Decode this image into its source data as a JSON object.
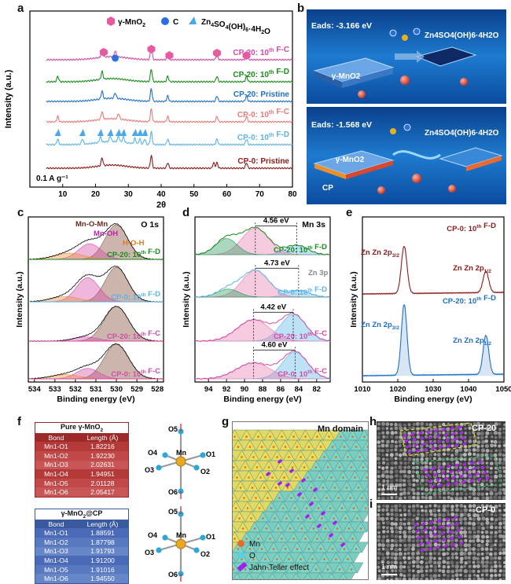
{
  "panel_labels": [
    "a",
    "b",
    "c",
    "d",
    "e",
    "f",
    "g",
    "h",
    "i"
  ],
  "chart_data": [
    {
      "panel": "a",
      "type": "line",
      "xlabel": "2θ",
      "ylabel": "Intensity (a.u.)",
      "xlim": [
        0,
        80
      ],
      "xticks": [
        10,
        20,
        30,
        40,
        50,
        60,
        70,
        80
      ],
      "legend": [
        {
          "symbol": "pink-hexagon",
          "label": "γ-MnO2"
        },
        {
          "symbol": "blue-sphere",
          "label": "C"
        },
        {
          "symbol": "blue-flake",
          "label": "Zn4SO4(OH)6·4H2O"
        }
      ],
      "annotation": "0.1 A g⁻¹",
      "series": [
        {
          "name": "CP-0: Pristine",
          "color": "#8b1a1a",
          "peaks": [
            22,
            37,
            42,
            56,
            57,
            66
          ]
        },
        {
          "name": "CP-0: 10th F-D",
          "color": "#5ab4e6",
          "peaks": [
            8.5,
            16,
            21.5,
            24.5,
            27,
            28.5,
            32,
            33.5,
            35,
            37,
            42,
            57,
            66
          ]
        },
        {
          "name": "CP-0: 10th F-C",
          "color": "#e87a7a",
          "peaks": [
            8.5,
            22,
            27,
            37,
            42,
            57,
            66
          ]
        },
        {
          "name": "CP-20: Pristine",
          "color": "#1f6fc5",
          "peaks": [
            22,
            26,
            37,
            42,
            57,
            66
          ]
        },
        {
          "name": "CP-20: 10th F-D",
          "color": "#1a8a1a",
          "peaks": [
            8.5,
            22,
            37,
            42,
            57,
            66
          ]
        },
        {
          "name": "CP-20: 10th F-C",
          "color": "#d44aa6",
          "peaks": [
            22,
            26,
            37,
            42,
            57,
            66
          ]
        }
      ]
    },
    {
      "panel": "c",
      "type": "line",
      "title": "O 1s",
      "xlabel": "Binding energy (eV)",
      "ylabel": "Intensity (a.u.)",
      "xlim": [
        534.3,
        527.7
      ],
      "xticks": [
        528,
        529,
        530,
        531,
        532,
        533,
        534
      ],
      "component_labels": [
        "Mn-O-Mn",
        "Mn-OH",
        "H-O-H"
      ],
      "series": [
        {
          "name": "CP-20: 10th F-D",
          "color": "#1a8a1a",
          "peaks": [
            {
              "center": 530.0,
              "height": 1.0,
              "width": 0.55
            },
            {
              "center": 531.3,
              "height": 0.45,
              "width": 0.55
            },
            {
              "center": 532.3,
              "height": 0.18,
              "width": 0.7
            }
          ]
        },
        {
          "name": "CP-0: 10th F-D",
          "color": "#5ab4e6",
          "peaks": [
            {
              "center": 530.0,
              "height": 1.0,
              "width": 0.55
            },
            {
              "center": 531.4,
              "height": 0.7,
              "width": 0.55
            },
            {
              "center": 532.5,
              "height": 0.15,
              "width": 0.7
            }
          ]
        },
        {
          "name": "CP-20: 10th F-C",
          "color": "#d44aa6",
          "peaks": [
            {
              "center": 530.0,
              "height": 1.0,
              "width": 0.6
            },
            {
              "center": 531.5,
              "height": 0.12,
              "width": 0.6
            }
          ]
        },
        {
          "name": "CP-0: 10th F-C",
          "color": "#d44aa6",
          "peaks": [
            {
              "center": 530.0,
              "height": 1.0,
              "width": 0.6
            },
            {
              "center": 531.4,
              "height": 0.3,
              "width": 0.55
            },
            {
              "center": 532.5,
              "height": 0.12,
              "width": 0.7
            }
          ]
        }
      ]
    },
    {
      "panel": "d",
      "type": "line",
      "title": "Mn 3s",
      "xlabel": "Binding energy (eV)",
      "ylabel": "Intensity (a.u.)",
      "xlim": [
        95.5,
        80.5
      ],
      "xticks": [
        82,
        84,
        86,
        88,
        90,
        92,
        94
      ],
      "component_labels": [
        "Zn 3p"
      ],
      "series": [
        {
          "name": "CP-20: 10th F-D",
          "color": "#1a8a1a",
          "splitting": "4.56 eV",
          "peaks": [
            {
              "center": 84.2,
              "height": 0.35,
              "width": 1.2
            },
            {
              "center": 88.8,
              "height": 1.0,
              "width": 1.5
            },
            {
              "center": 92.0,
              "height": 0.6,
              "width": 1.2
            }
          ]
        },
        {
          "name": "CP-0: 10th F-D",
          "color": "#5ab4e6",
          "splitting": "4.73 eV",
          "peaks": [
            {
              "center": 84.0,
              "height": 0.25,
              "width": 1.2
            },
            {
              "center": 88.8,
              "height": 1.0,
              "width": 1.5
            },
            {
              "center": 91.8,
              "height": 0.3,
              "width": 1.2
            }
          ]
        },
        {
          "name": "CP-20: 10th F-C",
          "color": "#d44aa6",
          "splitting": "4.42 eV",
          "peaks": [
            {
              "center": 84.6,
              "height": 1.0,
              "width": 1.4
            },
            {
              "center": 89.0,
              "height": 0.8,
              "width": 1.8
            }
          ]
        },
        {
          "name": "CP-0: 10th F-C",
          "color": "#d44aa6",
          "splitting": "4.60 eV",
          "peaks": [
            {
              "center": 84.4,
              "height": 1.0,
              "width": 1.4
            },
            {
              "center": 89.0,
              "height": 0.6,
              "width": 1.9
            }
          ]
        }
      ]
    },
    {
      "panel": "e",
      "type": "line",
      "xlabel": "Binding energy (eV)",
      "ylabel": "Intensity (a.u.)",
      "xlim": [
        1010,
        1050
      ],
      "xticks": [
        1010,
        1020,
        1030,
        1040,
        1050
      ],
      "series": [
        {
          "name": "CP-0: 10th F-D",
          "color": "#8b1a1a",
          "peaks": [
            {
              "center": 1021.8,
              "height": 1.0,
              "label": "Zn 2p3/2"
            },
            {
              "center": 1044.9,
              "height": 0.45,
              "label": "Zn 2p1/2"
            }
          ]
        },
        {
          "name": "CP-20: 10th F-D",
          "color": "#1f6fc5",
          "peaks": [
            {
              "center": 1021.8,
              "height": 1.0,
              "label": "Zn 2p3/2"
            },
            {
              "center": 1044.9,
              "height": 0.55,
              "label": "Zn 2p1/2"
            }
          ]
        }
      ]
    },
    {
      "panel": "f",
      "type": "table",
      "tables": [
        {
          "title": "Pure γ-MnO2",
          "columns": [
            "Bond",
            "Length (Å)"
          ],
          "rows": [
            [
              "Mn1-O1",
              "1.82216"
            ],
            [
              "Mn1-O2",
              "1.92230"
            ],
            [
              "Mn1-O3",
              "2.02631"
            ],
            [
              "Mn1-O4",
              "1.94951"
            ],
            [
              "Mn1-O5",
              "2.01128"
            ],
            [
              "Mn1-O6",
              "2.05417"
            ]
          ]
        },
        {
          "title": "γ-MnO2@CP",
          "columns": [
            "Bond",
            "Length (Å)"
          ],
          "rows": [
            [
              "Mn1-O1",
              "1.88591"
            ],
            [
              "Mn1-O2",
              "1.87798"
            ],
            [
              "Mn1-O3",
              "1.91793"
            ],
            [
              "Mn1-O4",
              "1.91200"
            ],
            [
              "Mn1-O5",
              "1.91016"
            ],
            [
              "Mn1-O6",
              "1.94550"
            ]
          ]
        }
      ]
    }
  ],
  "panel_b": {
    "top": {
      "energy_label": "Eads: -3.166 eV",
      "slab_label": "γ-MnO2",
      "product_label": "Zn4SO4(OH)6·4H2O"
    },
    "bottom": {
      "energy_label": "Eads: -1.568 eV",
      "slab_label": "γ-MnO2",
      "substrate_label": "CP",
      "product_label": "Zn4SO4(OH)6·4H2O"
    }
  },
  "panel_f": {
    "octahedron_labels": [
      "O5",
      "O4",
      "Mn",
      "O1",
      "O3",
      "O2",
      "O6"
    ]
  },
  "panel_g": {
    "title": "Mn domain",
    "legend": [
      {
        "symbol": "orange-sphere",
        "label": "Mn"
      },
      {
        "symbol": "cyan-sphere",
        "label": "O"
      },
      {
        "symbol": "purple-dumbbell",
        "label": "Jahn-Teller effect"
      }
    ]
  },
  "panel_h": {
    "label": "CP-20",
    "scalebar": "1 nm"
  },
  "panel_i": {
    "label": "CP-0",
    "scalebar": "1 nm"
  },
  "colors": {
    "pink": "#d44aa6",
    "green": "#1a8a1a",
    "lightblue": "#5ab4e6",
    "darkred": "#8b1a1a",
    "blue": "#1f6fc5",
    "orange": "#e88a2a",
    "purple": "#a020f0"
  }
}
